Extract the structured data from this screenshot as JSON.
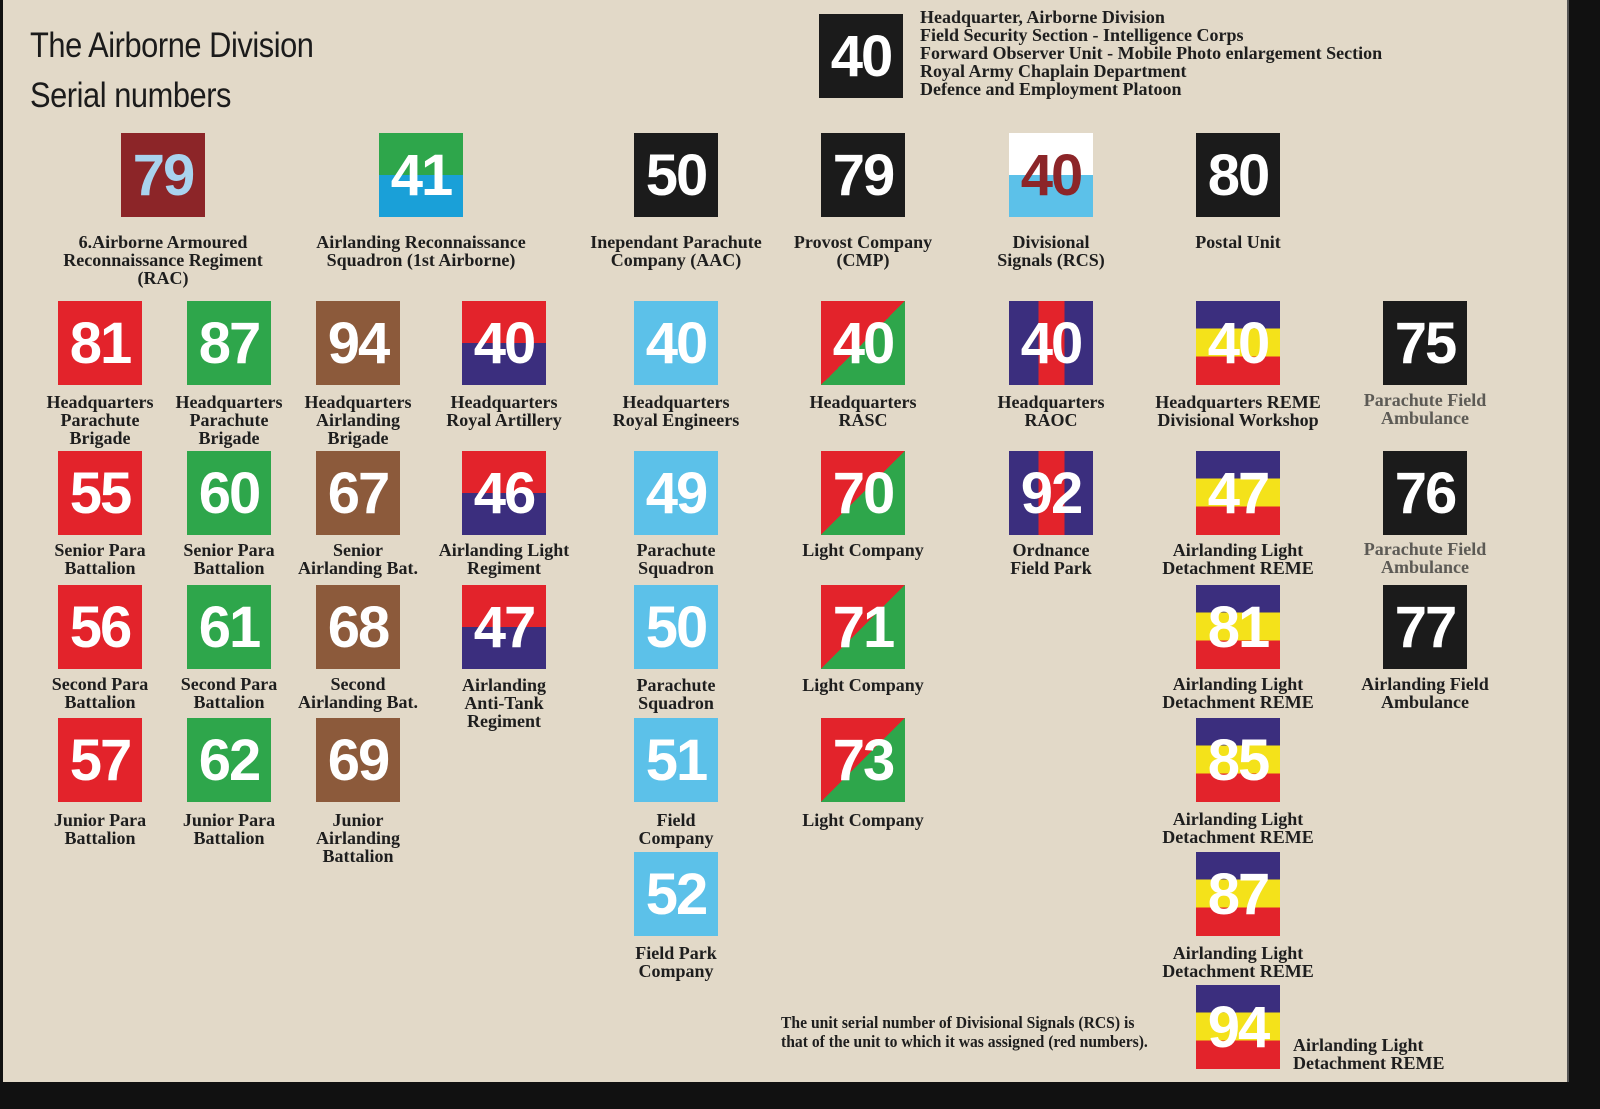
{
  "title": [
    "The Airborne Division",
    "Serial numbers"
  ],
  "colors": {
    "background": "#e2d9c8",
    "red": "#e3232b",
    "green": "#2ea64b",
    "brown": "#8c5a3b",
    "navy": "#3b2e7e",
    "light_blue": "#5cc1e9",
    "black": "#1b1b1b",
    "yellow": "#f4e21a",
    "maroon": "#8c2528",
    "white": "#ffffff"
  },
  "headquarters": {
    "number": "40",
    "pattern": "solid-black",
    "lines": [
      "Headquarter, Airborne Division",
      "Field Security Section - Intelligence Corps",
      "Forward Observer Unit - Mobile Photo enlargement Section",
      "Royal Army Chaplain Department",
      "Defence and Employment Platoon"
    ]
  },
  "units": [
    {
      "number": "79",
      "label": "6.Airborne Armoured\nReconnaissance Regiment\n(RAC)",
      "pattern": "solid-maroon"
    },
    {
      "number": "41",
      "label": "Airlanding Reconnaissance\nSquadron (1st Airborne)",
      "pattern": "green-over-blue"
    },
    {
      "number": "50",
      "label": "Inependant Parachute\nCompany (AAC)",
      "pattern": "solid-black"
    },
    {
      "number": "79",
      "label": "Provost Company\n(CMP)",
      "pattern": "solid-black"
    },
    {
      "number": "40",
      "label": "Divisional\nSignals (RCS)",
      "pattern": "white-over-lightblue"
    },
    {
      "number": "80",
      "label": "Postal Unit",
      "pattern": "solid-black"
    },
    {
      "number": "81",
      "label": "Headquarters\nParachute\nBrigade",
      "pattern": "solid-red"
    },
    {
      "number": "87",
      "label": "Headquarters\nParachute\nBrigade",
      "pattern": "solid-green"
    },
    {
      "number": "94",
      "label": "Headquarters\nAirlanding\nBrigade",
      "pattern": "solid-brown"
    },
    {
      "number": "40",
      "label": "Headquarters\nRoyal Artillery",
      "pattern": "red-over-navy"
    },
    {
      "number": "40",
      "label": "Headquarters\nRoyal Engineers",
      "pattern": "solid-lightblue"
    },
    {
      "number": "40",
      "label": "Headquarters\nRASC",
      "pattern": "red-green-diagonal"
    },
    {
      "number": "40",
      "label": "Headquarters\nRAOC",
      "pattern": "navy-red-navy-vertical"
    },
    {
      "number": "40",
      "label": "Headquarters REME\nDivisional Workshop",
      "pattern": "navy-yellow-red"
    },
    {
      "number": "75",
      "label": "Parachute Field\nAmbulance",
      "pattern": "solid-black",
      "muted": true
    },
    {
      "number": "55",
      "label": "Senior Para\nBattalion",
      "pattern": "solid-red"
    },
    {
      "number": "60",
      "label": "Senior Para\nBattalion",
      "pattern": "solid-green"
    },
    {
      "number": "67",
      "label": "Senior\nAirlanding Bat.",
      "pattern": "solid-brown"
    },
    {
      "number": "46",
      "label": "Airlanding Light\nRegiment",
      "pattern": "red-over-navy"
    },
    {
      "number": "49",
      "label": "Parachute\nSquadron",
      "pattern": "solid-lightblue"
    },
    {
      "number": "70",
      "label": "Light Company",
      "pattern": "red-green-diagonal"
    },
    {
      "number": "92",
      "label": "Ordnance\nField Park",
      "pattern": "navy-red-navy-vertical"
    },
    {
      "number": "47",
      "label": "Airlanding Light\nDetachment REME",
      "pattern": "navy-yellow-red"
    },
    {
      "number": "76",
      "label": "Parachute Field\nAmbulance",
      "pattern": "solid-black",
      "muted": true
    },
    {
      "number": "56",
      "label": "Second Para\nBattalion",
      "pattern": "solid-red"
    },
    {
      "number": "61",
      "label": "Second Para\nBattalion",
      "pattern": "solid-green"
    },
    {
      "number": "68",
      "label": "Second\nAirlanding Bat.",
      "pattern": "solid-brown"
    },
    {
      "number": "47",
      "label": "Airlanding\nAnti-Tank\nRegiment",
      "pattern": "red-over-navy"
    },
    {
      "number": "50",
      "label": "Parachute\nSquadron",
      "pattern": "solid-lightblue"
    },
    {
      "number": "71",
      "label": "Light Company",
      "pattern": "red-green-diagonal"
    },
    {
      "number": "81",
      "label": "Airlanding Light\nDetachment REME",
      "pattern": "navy-yellow-red"
    },
    {
      "number": "77",
      "label": "Airlanding Field\nAmbulance",
      "pattern": "solid-black"
    },
    {
      "number": "57",
      "label": "Junior Para\nBattalion",
      "pattern": "solid-red"
    },
    {
      "number": "62",
      "label": "Junior Para\nBattalion",
      "pattern": "solid-green"
    },
    {
      "number": "69",
      "label": "Junior\nAirlanding\nBattalion",
      "pattern": "solid-brown"
    },
    {
      "number": "51",
      "label": "Field\nCompany",
      "pattern": "solid-lightblue"
    },
    {
      "number": "73",
      "label": "Light Company",
      "pattern": "red-green-diagonal"
    },
    {
      "number": "85",
      "label": "Airlanding Light\nDetachment REME",
      "pattern": "navy-yellow-red"
    },
    {
      "number": "52",
      "label": "Field Park\nCompany",
      "pattern": "solid-lightblue"
    },
    {
      "number": "87",
      "label": "Airlanding Light\nDetachment REME",
      "pattern": "navy-yellow-red"
    },
    {
      "number": "94",
      "label": "Airlanding Light\nDetachment REME",
      "pattern": "navy-yellow-red",
      "label_side": "right"
    }
  ],
  "note": "The unit serial number of Divisional Signals (RCS) is that of the unit to which it was assigned (red numbers)."
}
